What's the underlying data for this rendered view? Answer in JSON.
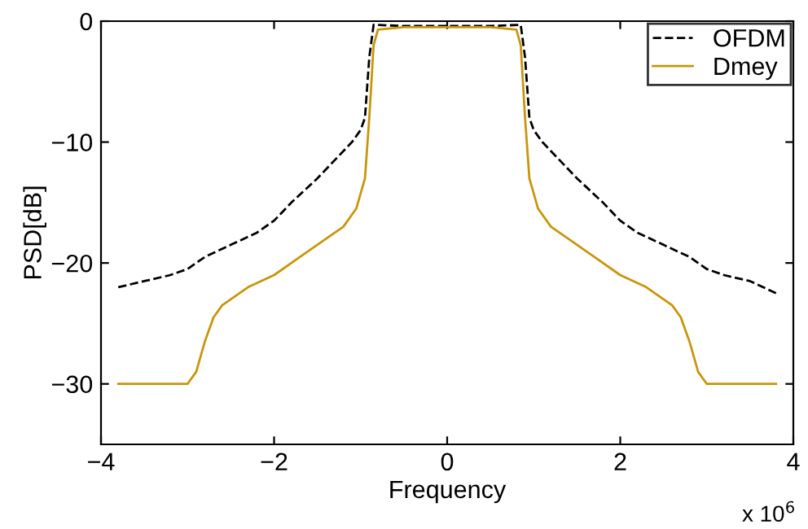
{
  "chart_data": {
    "type": "line",
    "xlabel": "Frequency",
    "ylabel": "PSD[dB]",
    "xlim": [
      -4,
      4
    ],
    "xticks": [
      {
        "value": -4,
        "label": "−4"
      },
      {
        "value": -2,
        "label": "−2"
      },
      0,
      2,
      4
    ],
    "ylim": [
      -35,
      0
    ],
    "yticks": [
      {
        "value": -30,
        "label": "−30"
      },
      {
        "value": -20,
        "label": "−20"
      },
      {
        "value": -10,
        "label": "−10"
      },
      0
    ],
    "annotations": [
      "x 10$^{6}$"
    ],
    "legend": "top right",
    "grid": false,
    "series": [
      {
        "name": "OFDM",
        "color": "#000000",
        "line_style": "dashed",
        "x": [
          -3.8,
          -3.5,
          -3.2,
          -3.0,
          -2.8,
          -2.5,
          -2.2,
          -2.0,
          -1.8,
          -1.5,
          -1.3,
          -1.1,
          -1.0,
          -0.95,
          -0.9,
          -0.85,
          -0.5,
          0,
          0.5,
          0.85,
          0.9,
          0.95,
          1.0,
          1.1,
          1.3,
          1.5,
          1.8,
          2.0,
          2.2,
          2.5,
          2.8,
          3.0,
          3.2,
          3.5,
          3.8
        ],
        "values": [
          -22,
          -21.5,
          -21,
          -20.5,
          -19.5,
          -18.5,
          -17.5,
          -16.5,
          -15,
          -13,
          -11.5,
          -10,
          -9,
          -8,
          -3,
          -0.3,
          -0.4,
          -0.4,
          -0.4,
          -0.3,
          -3,
          -8,
          -9,
          -10,
          -11.5,
          -13,
          -15,
          -16.5,
          -17.5,
          -18.5,
          -19.5,
          -20.5,
          -21,
          -21.5,
          -22.5
        ]
      },
      {
        "name": "Dmey",
        "color": "#c8960c",
        "line_style": "solid",
        "x": [
          -3.8,
          -3.4,
          -3.0,
          -2.9,
          -2.8,
          -2.7,
          -2.6,
          -2.3,
          -2.0,
          -1.7,
          -1.4,
          -1.2,
          -1.05,
          -0.95,
          -0.9,
          -0.85,
          -0.8,
          -0.5,
          0,
          0.5,
          0.8,
          0.85,
          0.9,
          0.95,
          1.05,
          1.2,
          1.4,
          1.7,
          2.0,
          2.3,
          2.6,
          2.7,
          2.8,
          2.9,
          3.0,
          3.4,
          3.8
        ],
        "values": [
          -30,
          -30,
          -30,
          -29,
          -26.5,
          -24.5,
          -23.5,
          -22,
          -21,
          -19.5,
          -18,
          -17,
          -15.5,
          -13,
          -8,
          -2,
          -0.7,
          -0.5,
          -0.5,
          -0.5,
          -0.7,
          -2,
          -8,
          -13,
          -15.5,
          -17,
          -18,
          -19.5,
          -21,
          -22,
          -23.5,
          -24.5,
          -26.5,
          -29,
          -30,
          -30,
          -30
        ]
      }
    ]
  }
}
